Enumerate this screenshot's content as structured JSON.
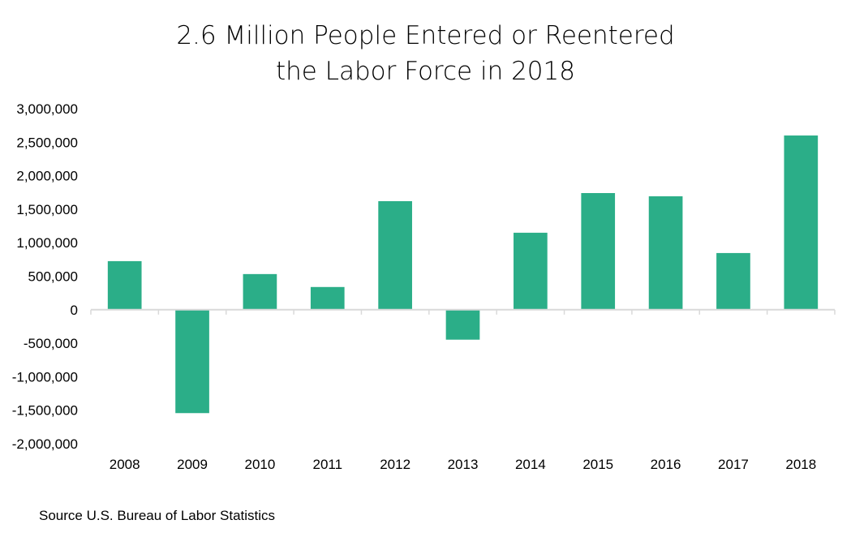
{
  "chart_data": {
    "type": "bar",
    "title_lines": [
      "2.6 Million People Entered or Reentered",
      "the Labor Force in 2018"
    ],
    "categories": [
      "2008",
      "2009",
      "2010",
      "2011",
      "2012",
      "2013",
      "2014",
      "2015",
      "2016",
      "2017",
      "2018"
    ],
    "values": [
      725000,
      -1543000,
      532000,
      339000,
      1620000,
      -447000,
      1149000,
      1741000,
      1693000,
      846000,
      2600000
    ],
    "xlabel": "",
    "ylabel": "",
    "ylim": [
      -2000000,
      3000000
    ],
    "yticks": [
      3000000,
      2500000,
      2000000,
      1500000,
      1000000,
      500000,
      0,
      -500000,
      -1000000,
      -1500000,
      -2000000
    ],
    "ytick_labels": [
      "3,000,000",
      "2,500,000",
      "2,000,000",
      "1,500,000",
      "1,000,000",
      "500,000",
      "0",
      "-500,000",
      "-1,000,000",
      "-1,500,000",
      "-2,000,000"
    ],
    "grid": false,
    "legend": "none",
    "colors": {
      "bar": "#2bae88",
      "axis": "#d9d9d9"
    }
  },
  "source": "Source U.S. Bureau of Labor Statistics"
}
